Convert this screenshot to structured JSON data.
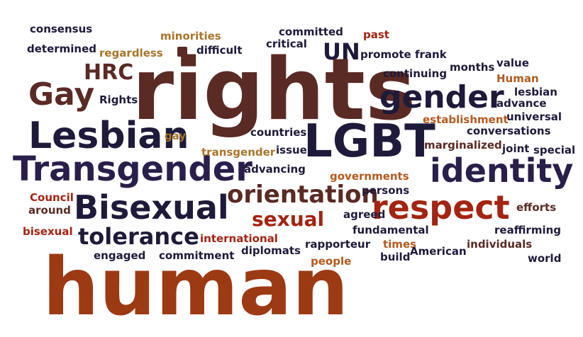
{
  "palette": {
    "dark_navy": "#1e1a3a",
    "dark_purple": "#2a1f4a",
    "maroon": "#5a2a24",
    "rust": "#9c3a14",
    "orange_brown": "#b35a1f",
    "gold": "#a8742a",
    "red": "#a32412"
  },
  "words": [
    {
      "text": "consensus",
      "color": "#1e1a3a"
    },
    {
      "text": "determined",
      "color": "#1e1a3a"
    },
    {
      "text": "minorities",
      "color": "#a8742a"
    },
    {
      "text": "regardless",
      "color": "#a8742a"
    },
    {
      "text": "difficult",
      "color": "#1e1a3a"
    },
    {
      "text": "committed",
      "color": "#1e1a3a"
    },
    {
      "text": "critical",
      "color": "#1e1a3a"
    },
    {
      "text": "past",
      "color": "#a32412"
    },
    {
      "text": "UN",
      "color": "#1e1a3a"
    },
    {
      "text": "promote",
      "color": "#1e1a3a"
    },
    {
      "text": "frank",
      "color": "#1e1a3a"
    },
    {
      "text": "HRC",
      "color": "#5a2a24"
    },
    {
      "text": "rights",
      "color": "#5a2a24"
    },
    {
      "text": "Gay",
      "color": "#5a2a24"
    },
    {
      "text": "Rights",
      "color": "#1e1a3a"
    },
    {
      "text": "gender",
      "color": "#1e1a3a"
    },
    {
      "text": "continuing",
      "color": "#1e1a3a"
    },
    {
      "text": "months",
      "color": "#1e1a3a"
    },
    {
      "text": "value",
      "color": "#1e1a3a"
    },
    {
      "text": "Human",
      "color": "#b35a1f"
    },
    {
      "text": "lesbian",
      "color": "#1e1a3a"
    },
    {
      "text": "advance",
      "color": "#1e1a3a"
    },
    {
      "text": "universal",
      "color": "#1e1a3a"
    },
    {
      "text": "Lesbian",
      "color": "#1e1a3a"
    },
    {
      "text": "gay",
      "color": "#a8742a"
    },
    {
      "text": "countries",
      "color": "#1e1a3a"
    },
    {
      "text": "LGBT",
      "color": "#1e1a3a"
    },
    {
      "text": "establishment",
      "color": "#b35a1f"
    },
    {
      "text": "conversations",
      "color": "#1e1a3a"
    },
    {
      "text": "Transgender",
      "color": "#2a1f4a"
    },
    {
      "text": "transgender",
      "color": "#a8742a"
    },
    {
      "text": "issue",
      "color": "#1e1a3a"
    },
    {
      "text": "marginalized",
      "color": "#5a2a24"
    },
    {
      "text": "joint",
      "color": "#1e1a3a"
    },
    {
      "text": "special",
      "color": "#1e1a3a"
    },
    {
      "text": "identity",
      "color": "#2a1f4a"
    },
    {
      "text": "advancing",
      "color": "#1e1a3a"
    },
    {
      "text": "governments",
      "color": "#b35a1f"
    },
    {
      "text": "orientation",
      "color": "#5a2a24"
    },
    {
      "text": "persons",
      "color": "#1e1a3a"
    },
    {
      "text": "Council",
      "color": "#a32412"
    },
    {
      "text": "around",
      "color": "#5a2a24"
    },
    {
      "text": "Bisexual",
      "color": "#1e1a3a"
    },
    {
      "text": "respect",
      "color": "#a32412"
    },
    {
      "text": "efforts",
      "color": "#5a2a24"
    },
    {
      "text": "sexual",
      "color": "#a32412"
    },
    {
      "text": "agreed",
      "color": "#1e1a3a"
    },
    {
      "text": "bisexual",
      "color": "#a32412"
    },
    {
      "text": "tolerance",
      "color": "#1e1a3a"
    },
    {
      "text": "international",
      "color": "#a32412"
    },
    {
      "text": "fundamental",
      "color": "#1e1a3a"
    },
    {
      "text": "reaffirming",
      "color": "#1e1a3a"
    },
    {
      "text": "engaged",
      "color": "#1e1a3a"
    },
    {
      "text": "commitment",
      "color": "#1e1a3a"
    },
    {
      "text": "diplomats",
      "color": "#1e1a3a"
    },
    {
      "text": "rapporteur",
      "color": "#1e1a3a"
    },
    {
      "text": "times",
      "color": "#b35a1f"
    },
    {
      "text": "American",
      "color": "#1e1a3a"
    },
    {
      "text": "individuals",
      "color": "#5a2a24"
    },
    {
      "text": "build",
      "color": "#1e1a3a"
    },
    {
      "text": "people",
      "color": "#b35a1f"
    },
    {
      "text": "world",
      "color": "#1e1a3a"
    },
    {
      "text": "human",
      "color": "#9c3a14"
    }
  ]
}
